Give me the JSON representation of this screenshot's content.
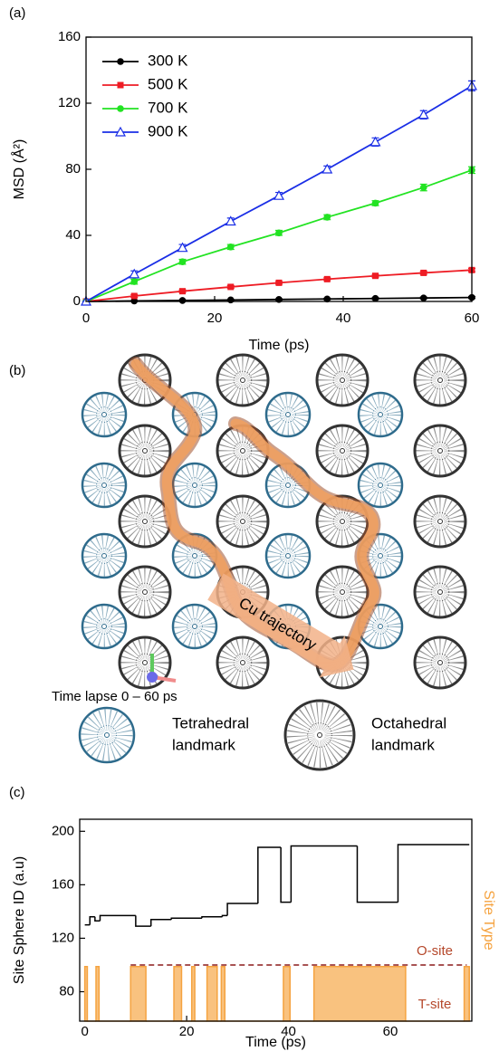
{
  "chart_data": [
    {
      "type": "line",
      "panel": "(a)",
      "xlabel": "Time (ps)",
      "ylabel": "MSD (Å²)",
      "x": [
        0,
        7.5,
        15,
        22.5,
        30,
        37.5,
        45,
        52.5,
        60
      ],
      "xlim": [
        0,
        60
      ],
      "xticks": [
        0,
        20,
        40,
        60
      ],
      "ylim": [
        0,
        160
      ],
      "yticks": [
        0,
        40,
        80,
        120,
        160
      ],
      "legend": "upper left",
      "series": [
        {
          "name": "300 K",
          "color": "#000000",
          "marker": "circle",
          "values": [
            0,
            0.3,
            0.6,
            0.9,
            1.2,
            1.5,
            1.8,
            2.1,
            2.4
          ],
          "errors": [
            0,
            0.2,
            0.3,
            0.3,
            0.4,
            0.4,
            0.5,
            0.5,
            0.6
          ]
        },
        {
          "name": "500 K",
          "color": "#ee1c24",
          "marker": "square",
          "values": [
            0,
            3.3,
            6.2,
            8.8,
            11.3,
            13.5,
            15.5,
            17.3,
            19
          ],
          "errors": [
            0,
            0.8,
            0.8,
            0.8,
            0.8,
            0.8,
            0.8,
            0.9,
            1
          ]
        },
        {
          "name": "700 K",
          "color": "#22e322",
          "marker": "circle",
          "values": [
            0,
            12,
            24,
            33,
            41.5,
            51,
            59.5,
            69,
            79.5
          ],
          "errors": [
            0,
            1.5,
            1.5,
            1.5,
            1.5,
            1.5,
            1.5,
            2,
            2
          ]
        },
        {
          "name": "900 K",
          "color": "#1a2ee6",
          "marker": "triangle",
          "values": [
            0,
            16.5,
            32.5,
            48.5,
            64,
            80,
            96.5,
            113,
            130.5
          ],
          "errors": [
            0,
            2,
            2,
            2,
            2,
            2,
            2.5,
            2.5,
            3
          ]
        }
      ]
    },
    {
      "type": "step",
      "panel": "(c)",
      "xlabel": "Time (ps)",
      "ylabel": "Site Sphere ID (a.u)",
      "y2label": "Site Type",
      "xlim": [
        -1,
        76
      ],
      "xticks": [
        0,
        20,
        40,
        60
      ],
      "ylim": [
        58,
        209
      ],
      "yticks": [
        80,
        120,
        160,
        200
      ],
      "y2lim": [
        0,
        3.7
      ],
      "series": [
        {
          "color": "#f5a340",
          "fill": "#f9c27f",
          "axis": "y2",
          "x": [
            0,
            0.5,
            2.2,
            2.8,
            9,
            12,
            17.5,
            19,
            21,
            21.6,
            24,
            26,
            26.8,
            27.5,
            39,
            40.3,
            45,
            63,
            74.5,
            75.5
          ],
          "values": [
            1,
            0,
            1,
            0,
            1,
            0,
            1,
            0,
            1,
            0,
            1,
            0,
            1,
            0,
            1,
            0,
            1,
            0,
            1,
            1
          ]
        },
        {
          "color": "#000000",
          "x": [
            0,
            1,
            2,
            3,
            10,
            13,
            17,
            23,
            27,
            28,
            34,
            38.5,
            40.5,
            53.5,
            61.5,
            75.5
          ],
          "values": [
            130,
            136,
            133,
            137,
            129,
            134,
            135,
            136,
            137,
            146,
            188,
            147,
            189,
            147,
            190,
            190
          ]
        }
      ],
      "reference_line": {
        "y": 100,
        "xrange": [
          9,
          75
        ],
        "color": "#8b1a1a"
      },
      "annotations": [
        "O-site",
        "T-site"
      ]
    }
  ],
  "diagram": {
    "panel": "(b)",
    "arrow_label": "Cu trajectory",
    "caption": "Time lapse 0 – 60 ps",
    "legend": [
      {
        "label": [
          "Tetrahedral",
          "landmark"
        ],
        "color": "#2e6b8c"
      },
      {
        "label": [
          "Octahedral",
          "landmark"
        ],
        "color": "#333333"
      }
    ]
  }
}
